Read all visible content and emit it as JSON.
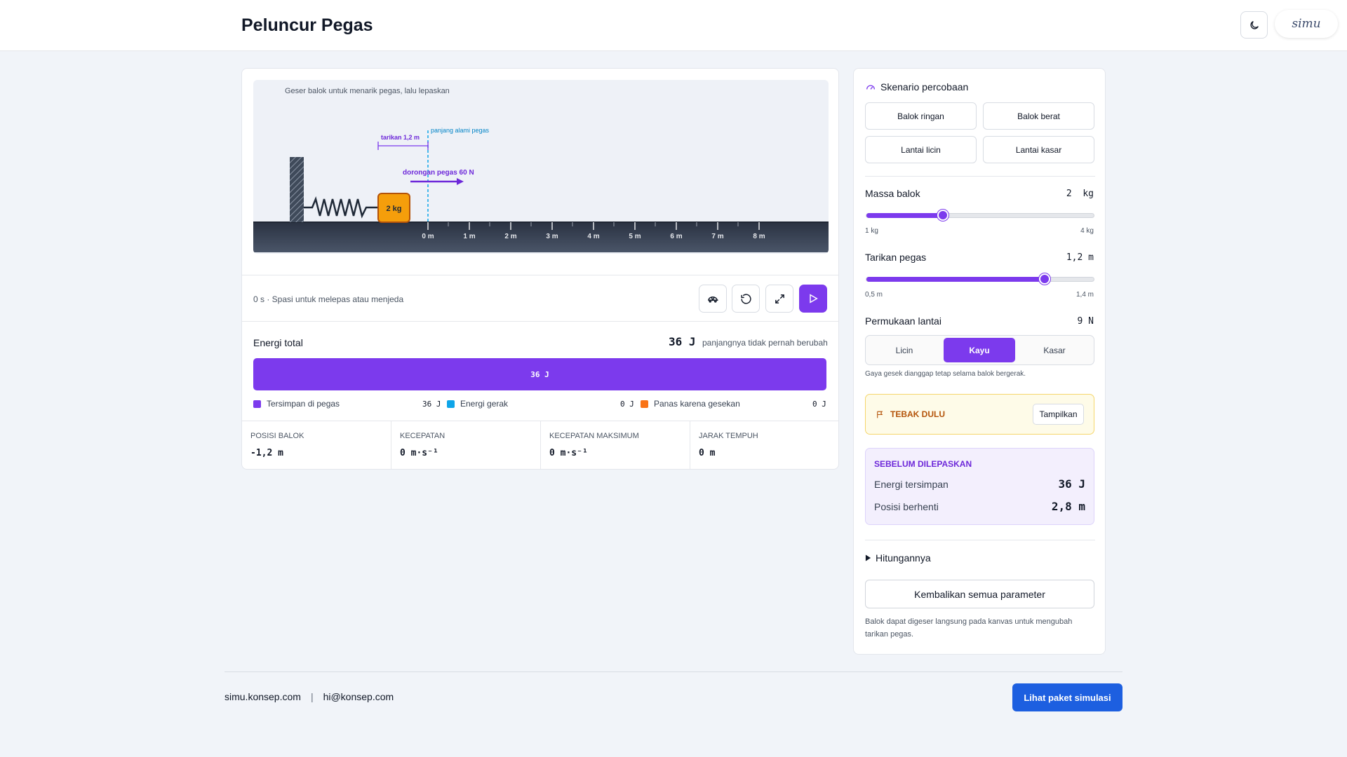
{
  "header": {
    "title": "Peluncur Pegas",
    "theme_icon": "moon-icon",
    "logo_text": "simu"
  },
  "simulation": {
    "canvas_hint": "Geser balok untuk menarik pegas, lalu lepaskan",
    "pull_label": "tarikan 1,2 m",
    "natural_length_label": "panjang alami pegas",
    "push_label": "dorongan pegas 60 N",
    "block_label": "2 kg",
    "ruler_ticks": [
      "0 m",
      "1 m",
      "2 m",
      "3 m",
      "4 m",
      "5 m",
      "6 m",
      "7 m",
      "8 m"
    ],
    "status_text": "0 s · Spasi untuk melepas atau menjeda",
    "controls": {
      "slowmo_icon": "turtle-icon",
      "reset_icon": "reset-icon",
      "fullscreen_icon": "expand-icon",
      "play_icon": "play-icon"
    }
  },
  "energy": {
    "title": "Energi total",
    "value": "36 J",
    "note": "panjangnya tidak pernah berubah",
    "bar_label": "36 J",
    "legend": [
      {
        "label": "Tersimpan di pegas",
        "value": "36 J",
        "color": "#7c3aed"
      },
      {
        "label": "Energi gerak",
        "value": "0 J",
        "color": "#0ea5e9"
      },
      {
        "label": "Panas karena gesekan",
        "value": "0 J",
        "color": "#f97316"
      }
    ]
  },
  "stats": [
    {
      "label": "POSISI BALOK",
      "value": "-1,2 m"
    },
    {
      "label": "KECEPATAN",
      "value": "0 m·s⁻¹"
    },
    {
      "label": "KECEPATAN MAKSIMUM",
      "value": "0 m·s⁻¹"
    },
    {
      "label": "JARAK TEMPUH",
      "value": "0 m"
    }
  ],
  "panel": {
    "scenario_title": "Skenario percobaan",
    "scenarios": [
      "Balok ringan",
      "Balok berat",
      "Lantai licin",
      "Lantai kasar"
    ],
    "mass": {
      "label": "Massa balok",
      "value": "2  kg",
      "min_label": "1 kg",
      "max_label": "4 kg",
      "fraction": 0.333
    },
    "pull": {
      "label": "Tarikan pegas",
      "value": "1,2 m",
      "min_label": "0,5 m",
      "max_label": "1,4 m",
      "fraction": 0.778
    },
    "floor": {
      "label": "Permukaan lantai",
      "value": "9 N",
      "options": [
        "Licin",
        "Kayu",
        "Kasar"
      ],
      "selected": "Kayu",
      "note": "Gaya gesek dianggap tetap selama balok bergerak."
    },
    "guess": {
      "title": "TEBAK DULU",
      "button": "Tampilkan"
    },
    "before": {
      "title": "SEBELUM DILEPASKAN",
      "rows": [
        {
          "label": "Energi tersimpan",
          "value": "36 J"
        },
        {
          "label": "Posisi berhenti",
          "value": "2,8 m"
        }
      ]
    },
    "calc_label": "Hitungannya",
    "reset_button": "Kembalikan semua parameter",
    "note": "Balok dapat digeser langsung pada kanvas untuk mengubah tarikan pegas."
  },
  "footer": {
    "site": "simu.konsep.com",
    "separator": "|",
    "email": "hi@konsep.com",
    "cta": "Lihat paket simulasi"
  },
  "colors": {
    "accent": "#7c3aed",
    "primary_blue": "#1d5fe0",
    "block": "#f59e0b",
    "kinetic": "#0ea5e9",
    "heat": "#f97316"
  }
}
